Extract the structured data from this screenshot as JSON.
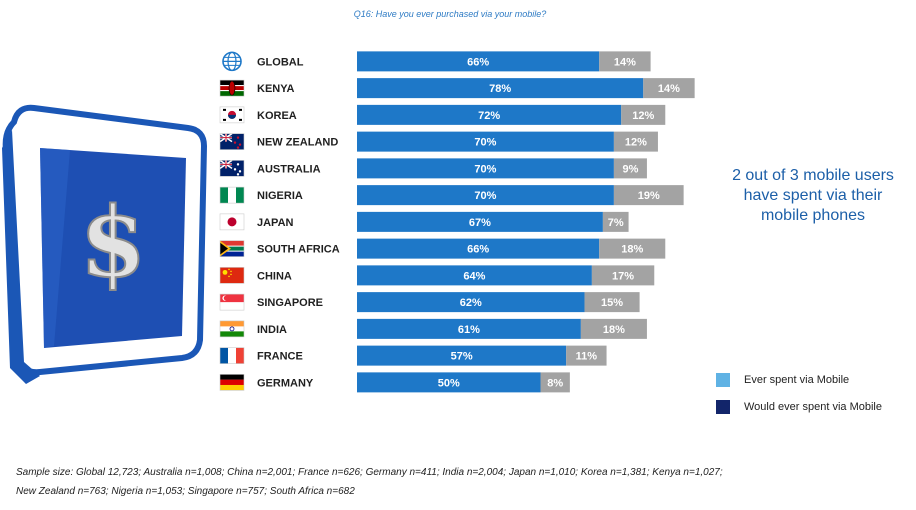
{
  "question": "Q16: Have you ever purchased via your mobile?",
  "callout": "2 out of 3 mobile users have spent via their mobile phones",
  "legend": [
    {
      "label": "Ever spent via Mobile",
      "color": "#5fb2e4"
    },
    {
      "label": "Would ever spent via Mobile",
      "color": "#12256a"
    }
  ],
  "footnote": {
    "line1": "Sample size: Global 12,723; Australia n=1,008; China n=2,001; France n=626; Germany n=411; India n=2,004; Japan n=1,010; Korea n=1,381; Kenya n=1,027;",
    "line2": "New Zealand n=763; Nigeria n=1,053; Singapore n=757;  South Africa n=682"
  },
  "icons": {
    "phone": "dollar-phone-icon",
    "global": "globe-icon"
  },
  "colors": {
    "bar_ever": "#1e78c8",
    "bar_would": "#a3a3a3",
    "label_text": "#ffffff"
  },
  "chart_data": {
    "type": "bar",
    "orientation": "horizontal",
    "stacked": true,
    "categories": [
      "GLOBAL",
      "KENYA",
      "KOREA",
      "NEW ZEALAND",
      "AUSTRALIA",
      "NIGERIA",
      "JAPAN",
      "SOUTH AFRICA",
      "CHINA",
      "SINGAPORE",
      "INDIA",
      "FRANCE",
      "GERMANY"
    ],
    "flags": [
      "globe",
      "kenya",
      "korea",
      "new-zealand",
      "australia",
      "nigeria",
      "japan",
      "south-africa",
      "china",
      "singapore",
      "india",
      "france",
      "germany"
    ],
    "series": [
      {
        "values": [
          66,
          78,
          72,
          70,
          70,
          70,
          67,
          66,
          64,
          62,
          61,
          57,
          50
        ]
      },
      {
        "values": [
          14,
          14,
          12,
          12,
          9,
          19,
          7,
          18,
          17,
          15,
          18,
          11,
          8
        ]
      }
    ],
    "value_suffix": "%",
    "xlim": [
      0,
      100
    ]
  }
}
